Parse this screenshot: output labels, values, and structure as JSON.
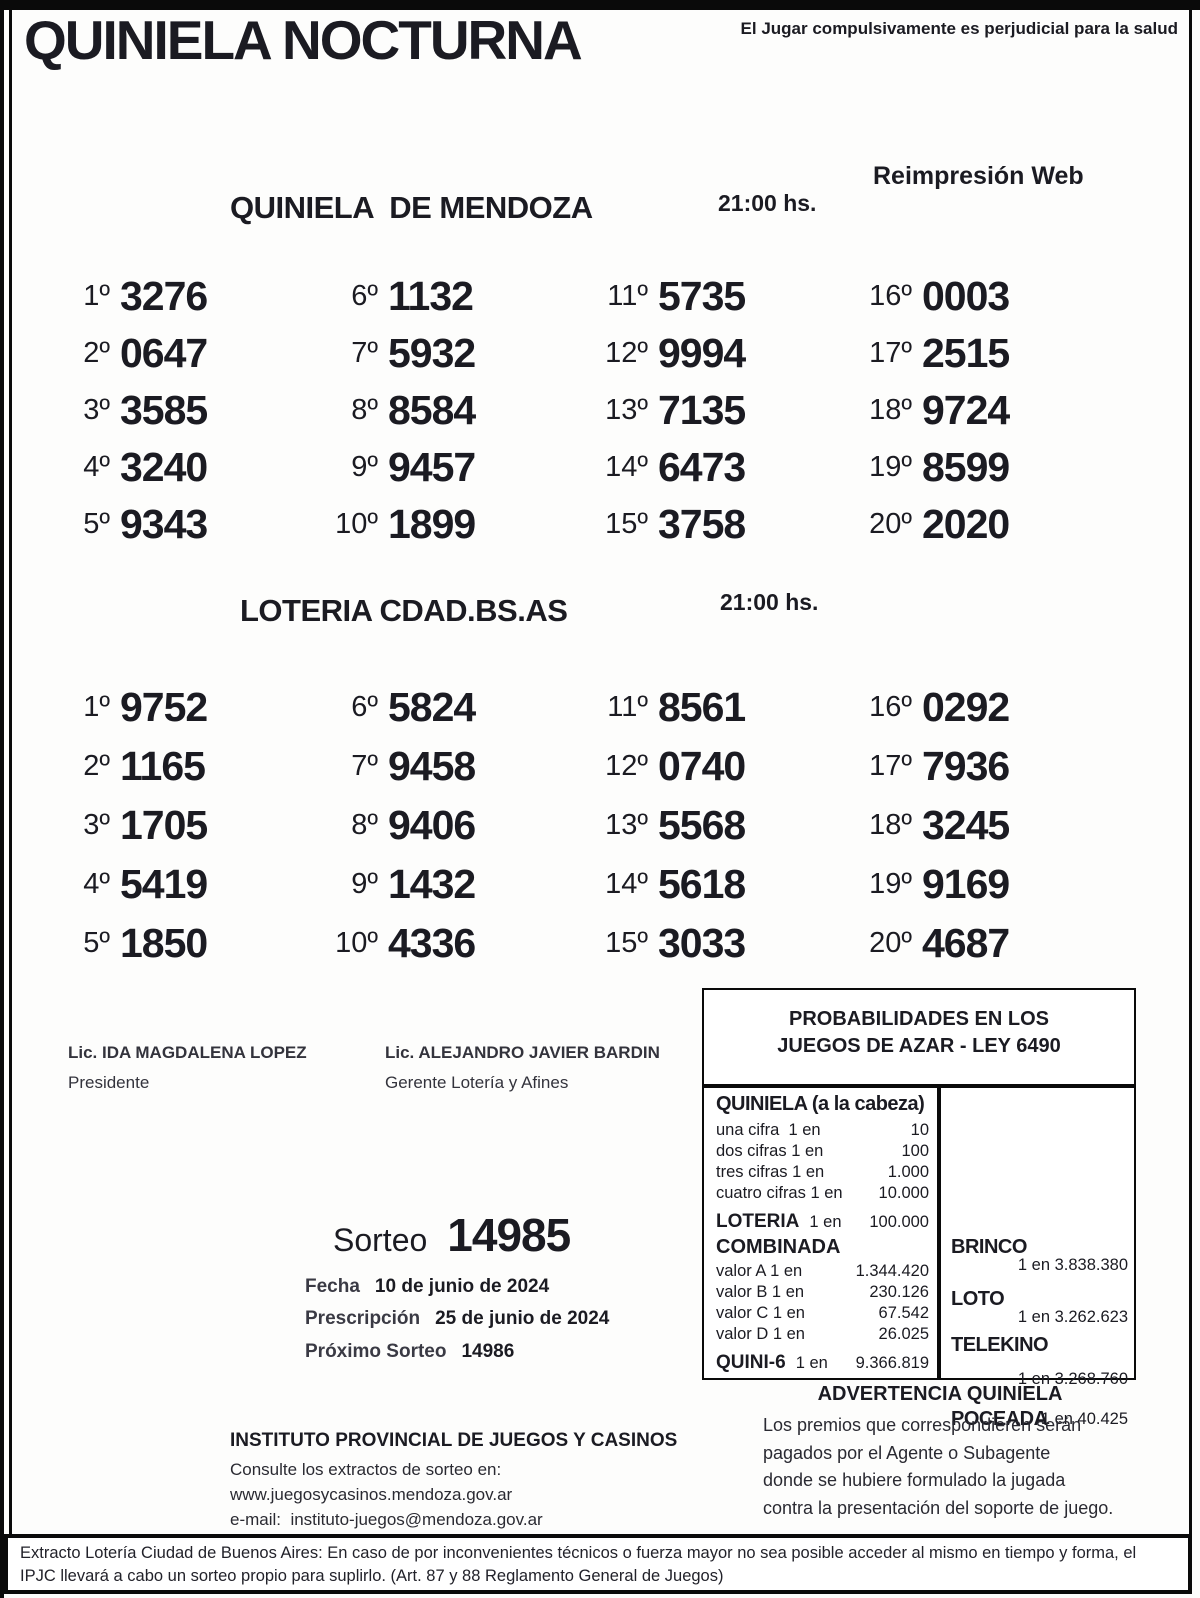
{
  "header": {
    "title": "QUINIELA NOCTURNA",
    "health_warning": "El Jugar compulsivamente es perjudicial para la salud",
    "reprint_label": "Reimpresión Web"
  },
  "mendoza": {
    "title": "QUINIELA  DE MENDOZA",
    "time": "21:00 hs.",
    "results": [
      {
        "pos": "1º",
        "value": "3276"
      },
      {
        "pos": "2º",
        "value": "0647"
      },
      {
        "pos": "3º",
        "value": "3585"
      },
      {
        "pos": "4º",
        "value": "3240"
      },
      {
        "pos": "5º",
        "value": "9343"
      },
      {
        "pos": "6º",
        "value": "1132"
      },
      {
        "pos": "7º",
        "value": "5932"
      },
      {
        "pos": "8º",
        "value": "8584"
      },
      {
        "pos": "9º",
        "value": "9457"
      },
      {
        "pos": "10º",
        "value": "1899"
      },
      {
        "pos": "11º",
        "value": "5735"
      },
      {
        "pos": "12º",
        "value": "9994"
      },
      {
        "pos": "13º",
        "value": "7135"
      },
      {
        "pos": "14º",
        "value": "6473"
      },
      {
        "pos": "15º",
        "value": "3758"
      },
      {
        "pos": "16º",
        "value": "0003"
      },
      {
        "pos": "17º",
        "value": "2515"
      },
      {
        "pos": "18º",
        "value": "9724"
      },
      {
        "pos": "19º",
        "value": "8599"
      },
      {
        "pos": "20º",
        "value": "2020"
      }
    ]
  },
  "bsas": {
    "title": "LOTERIA CDAD.BS.AS",
    "time": "21:00 hs.",
    "results": [
      {
        "pos": "1º",
        "value": "9752"
      },
      {
        "pos": "2º",
        "value": "1165"
      },
      {
        "pos": "3º",
        "value": "1705"
      },
      {
        "pos": "4º",
        "value": "5419"
      },
      {
        "pos": "5º",
        "value": "1850"
      },
      {
        "pos": "6º",
        "value": "5824"
      },
      {
        "pos": "7º",
        "value": "9458"
      },
      {
        "pos": "8º",
        "value": "9406"
      },
      {
        "pos": "9º",
        "value": "1432"
      },
      {
        "pos": "10º",
        "value": "4336"
      },
      {
        "pos": "11º",
        "value": "8561"
      },
      {
        "pos": "12º",
        "value": "0740"
      },
      {
        "pos": "13º",
        "value": "5568"
      },
      {
        "pos": "14º",
        "value": "5618"
      },
      {
        "pos": "15º",
        "value": "3033"
      },
      {
        "pos": "16º",
        "value": "0292"
      },
      {
        "pos": "17º",
        "value": "7936"
      },
      {
        "pos": "18º",
        "value": "3245"
      },
      {
        "pos": "19º",
        "value": "9169"
      },
      {
        "pos": "20º",
        "value": "4687"
      }
    ]
  },
  "signatures": [
    {
      "name": "Lic. IDA MAGDALENA LOPEZ",
      "role": "Presidente"
    },
    {
      "name": "Lic. ALEJANDRO JAVIER BARDIN",
      "role": "Gerente Lotería y Afines"
    }
  ],
  "draw_info": {
    "sorteo_label": "Sorteo",
    "sorteo_number": "14985",
    "fecha_label": "Fecha",
    "fecha": "10 de junio de 2024",
    "prescripcion_label": "Prescripción",
    "prescripcion": "25 de junio de 2024",
    "proximo_label": "Próximo Sorteo",
    "proximo": "14986"
  },
  "probabilities": {
    "title_line1": "PROBABILIDADES EN LOS",
    "title_line2": "JUEGOS DE AZAR - LEY 6490",
    "quiniela_header": "QUINIELA (a la cabeza)",
    "quiniela_rows": [
      {
        "label": "una cifra  1 en",
        "value": "10"
      },
      {
        "label": "dos cifras 1 en",
        "value": "100"
      },
      {
        "label": "tres cifras 1 en",
        "value": "1.000"
      },
      {
        "label": "cuatro cifras 1 en",
        "value": "10.000"
      }
    ],
    "loteria_row": {
      "name": "LOTERIA",
      "mid": "1 en",
      "value": "100.000"
    },
    "combinada_header": "COMBINADA",
    "combinada_rows": [
      {
        "label": "valor A 1 en",
        "value": "1.344.420"
      },
      {
        "label": "valor B 1 en",
        "value": "230.126"
      },
      {
        "label": "valor C 1 en",
        "value": "67.542"
      },
      {
        "label": "valor D 1 en",
        "value": "26.025"
      }
    ],
    "quini6_row": {
      "name": "QUINI-6",
      "mid": "1 en",
      "value": "9.366.819"
    },
    "right_games": [
      {
        "name": "BRINCO",
        "odds": "1 en 3.838.380"
      },
      {
        "name": "LOTO",
        "odds": "1 en 3.262.623"
      },
      {
        "name": "TELEKINO",
        "odds": "1 en 3.268.760"
      },
      {
        "name": "POCEADA",
        "odds": "1 en 40.425"
      }
    ]
  },
  "advertencia": {
    "title": "ADVERTENCIA QUINIELA",
    "lines": [
      "Los premios que correspondieren serán",
      "pagados por el Agente o Subagente",
      "donde se hubiere formulado la jugada",
      "contra la presentación del soporte de juego."
    ]
  },
  "instituto": {
    "name": "INSTITUTO PROVINCIAL DE JUEGOS Y CASINOS",
    "line1": "Consulte los extractos de sorteo en:",
    "line2": "www.juegosycasinos.mendoza.gov.ar",
    "line3": "e-mail:  instituto-juegos@mendoza.gov.ar"
  },
  "extracto_note": "Extracto Lotería Ciudad de Buenos Aires: En caso de por inconvenientes técnicos o fuerza mayor no sea posible acceder al mismo en tiempo y forma, el IPJC llevará a cabo un sorteo propio para suplirlo. (Art. 87 y 88 Reglamento General de Juegos)"
}
